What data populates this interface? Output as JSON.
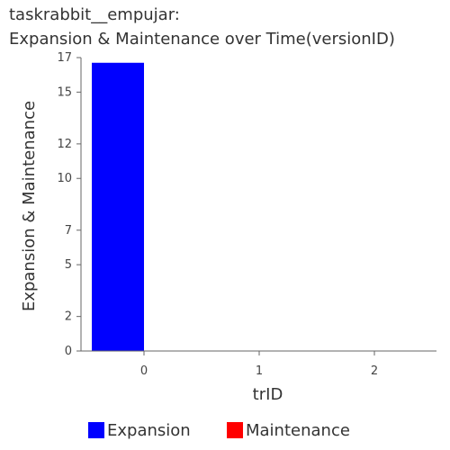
{
  "chart_data": {
    "type": "bar",
    "title_line1": "taskrabbit__empujar:",
    "title_line2": "Expansion & Maintenance over Time(versionID)",
    "xlabel": "trID",
    "ylabel": "Expansion & Maintenance",
    "categories": [
      "0",
      "1",
      "2"
    ],
    "series": [
      {
        "name": "Expansion",
        "color": "#0000ff",
        "values": [
          16.7,
          0,
          0
        ]
      },
      {
        "name": "Maintenance",
        "color": "#ff0000",
        "values": [
          0,
          0,
          0
        ]
      }
    ],
    "yticks": [
      "0",
      "2",
      "5",
      "7",
      "10",
      "12",
      "15",
      "17"
    ],
    "ylim": [
      0,
      17
    ],
    "legend_position": "bottom",
    "grid": false
  }
}
